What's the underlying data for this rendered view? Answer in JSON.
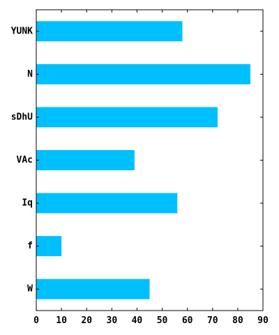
{
  "chart_data": {
    "type": "bar",
    "orientation": "horizontal",
    "categories": [
      "YUNK",
      "N",
      "sDhU",
      "VAc",
      "Iq",
      "f",
      "W"
    ],
    "values": [
      58,
      85,
      72,
      39,
      56,
      10,
      45
    ],
    "xlim": [
      0,
      90
    ],
    "xticks": [
      0,
      10,
      20,
      30,
      40,
      50,
      60,
      70,
      80,
      90
    ],
    "title": "",
    "xlabel": "",
    "ylabel": "",
    "grid": false,
    "bar_color": "#00bfff"
  }
}
